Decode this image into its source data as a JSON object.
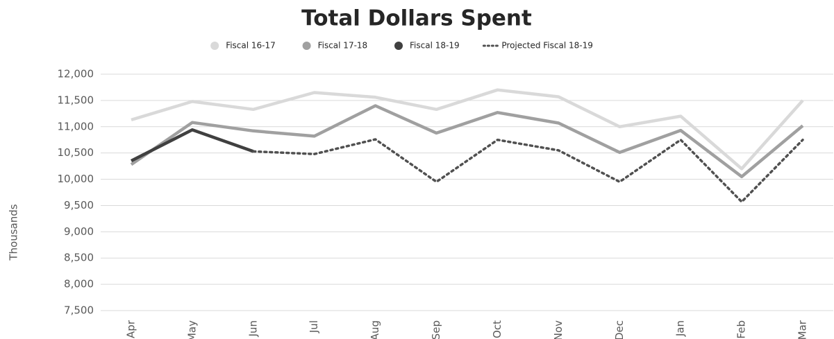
{
  "chart_data": {
    "type": "line",
    "title": "Total Dollars Spent",
    "y_label": "Thousands",
    "categories": [
      "Apr",
      "May",
      "Jun",
      "Jul",
      "Aug",
      "Sep",
      "Oct",
      "Nov",
      "Dec",
      "Jan",
      "Feb",
      "Mar"
    ],
    "series": [
      {
        "name": "Fiscal 16-17",
        "color": "#d9d9d9",
        "values": [
          11130,
          11480,
          11330,
          11650,
          11560,
          11330,
          11700,
          11570,
          11000,
          11200,
          10200,
          11500
        ]
      },
      {
        "name": "Fiscal 17-18",
        "color": "#a0a0a0",
        "values": [
          10280,
          11080,
          10920,
          10820,
          11400,
          10880,
          11270,
          11070,
          10510,
          10930,
          10050,
          11020
        ]
      },
      {
        "name": "Fiscal 18-19",
        "color": "#404040",
        "values": [
          10350,
          10940,
          10530,
          null,
          null,
          null,
          null,
          null,
          null,
          null,
          null,
          null
        ]
      },
      {
        "name": "Projected Fiscal 18-19",
        "color": "#505050",
        "dashed": true,
        "values": [
          null,
          null,
          10530,
          10480,
          10760,
          9950,
          10750,
          10550,
          9950,
          10750,
          9570,
          10750
        ]
      }
    ],
    "ylim": [
      7500,
      12000
    ],
    "yticks": [
      {
        "value": 7500,
        "label": "7,500"
      },
      {
        "value": 8000,
        "label": "8,000"
      },
      {
        "value": 8500,
        "label": "8,500"
      },
      {
        "value": 9000,
        "label": "9,000"
      },
      {
        "value": 9500,
        "label": "9,500"
      },
      {
        "value": 10000,
        "label": "10,000"
      },
      {
        "value": 10500,
        "label": "10,500"
      },
      {
        "value": 11000,
        "label": "11,000"
      },
      {
        "value": 11500,
        "label": "11,500"
      },
      {
        "value": 12000,
        "label": "12,000"
      }
    ],
    "grid": true,
    "legend": "top"
  }
}
